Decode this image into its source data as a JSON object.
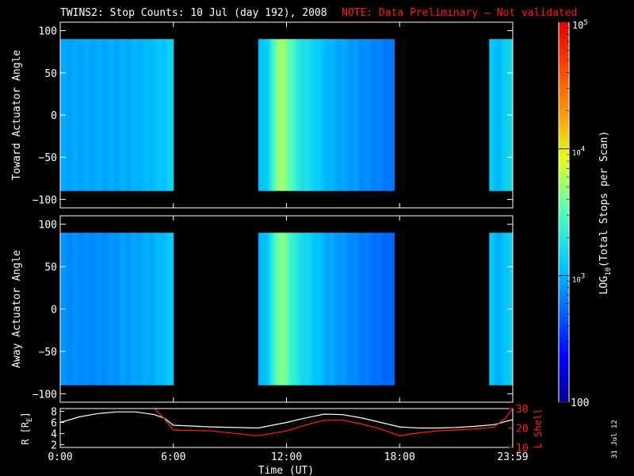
{
  "title": "TWINS2: Stop Counts: 10 Jul (day 192), 2008",
  "note": "NOTE: Data Preliminary — Not validated",
  "date_stamp": "31 Jul 12",
  "colors": {
    "background": "#000000",
    "axes": "#ffffff",
    "note": "#ff1a1a",
    "l_shell": "#ff2020",
    "r_line": "#ffffff"
  },
  "chart_data": [
    {
      "type": "heatmap",
      "name": "toward",
      "ylabel": "Toward Actuator Angle",
      "ylim": [
        -110,
        110
      ],
      "yticks": [
        -100,
        -50,
        0,
        50,
        100
      ],
      "xlim": [
        0,
        24
      ],
      "xticks": [
        0,
        6,
        12,
        18,
        24
      ],
      "data_y_range": [
        -90,
        90
      ],
      "segments": [
        {
          "start": 0.0,
          "end": 6.0,
          "values": [
            [
              0,
              2.95
            ],
            [
              1,
              2.96
            ],
            [
              2,
              2.97
            ],
            [
              3,
              2.97
            ],
            [
              4,
              3.0
            ],
            [
              5,
              3.05
            ],
            [
              5.6,
              3.1
            ],
            [
              6,
              3.15
            ]
          ]
        },
        {
          "start": 10.5,
          "end": 17.75,
          "values": [
            [
              10.5,
              3.0
            ],
            [
              11,
              3.15
            ],
            [
              11.4,
              3.5
            ],
            [
              11.6,
              3.75
            ],
            [
              11.8,
              3.7
            ],
            [
              12.2,
              3.55
            ],
            [
              12.6,
              3.3
            ],
            [
              13,
              3.25
            ],
            [
              13.5,
              3.15
            ],
            [
              14,
              3.05
            ],
            [
              15,
              2.95
            ],
            [
              16,
              2.88
            ],
            [
              17,
              2.82
            ],
            [
              17.75,
              2.78
            ]
          ]
        },
        {
          "start": 22.75,
          "end": 24.0,
          "values": [
            [
              22.75,
              3.1
            ],
            [
              23.3,
              3.05
            ],
            [
              24,
              3.25
            ]
          ]
        }
      ]
    },
    {
      "type": "heatmap",
      "name": "away",
      "ylabel": "Away Actuator Angle",
      "ylim": [
        -110,
        110
      ],
      "yticks": [
        -100,
        -50,
        0,
        50,
        100
      ],
      "xlim": [
        0,
        24
      ],
      "xticks": [
        0,
        6,
        12,
        18,
        24
      ],
      "data_y_range": [
        -90,
        90
      ],
      "segments": [
        {
          "start": 0.0,
          "end": 6.0,
          "values": [
            [
              0,
              2.88
            ],
            [
              1,
              2.86
            ],
            [
              2,
              2.86
            ],
            [
              3,
              2.9
            ],
            [
              4,
              2.95
            ],
            [
              5,
              3.0
            ],
            [
              6,
              3.1
            ]
          ]
        },
        {
          "start": 10.5,
          "end": 17.75,
          "values": [
            [
              10.5,
              2.95
            ],
            [
              11,
              3.1
            ],
            [
              11.4,
              3.45
            ],
            [
              11.7,
              3.7
            ],
            [
              12,
              3.55
            ],
            [
              12.5,
              3.3
            ],
            [
              13,
              3.2
            ],
            [
              14,
              3.0
            ],
            [
              15,
              2.9
            ],
            [
              16,
              2.82
            ],
            [
              17,
              2.75
            ],
            [
              17.75,
              2.72
            ]
          ]
        },
        {
          "start": 22.75,
          "end": 24.0,
          "values": [
            [
              22.75,
              3.1
            ],
            [
              23.3,
              3.0
            ],
            [
              24,
              3.2
            ]
          ]
        }
      ]
    },
    {
      "type": "colorbar",
      "label": "LOG10(Total Stops per Scan)",
      "scale": "log",
      "range": [
        100,
        100000
      ],
      "tick_labels": [
        "100",
        "10^3",
        "10^4",
        "10^5"
      ]
    },
    {
      "type": "line",
      "name": "orbit",
      "xlabel": "Time (UT)",
      "x_tick_labels": [
        "0:00",
        "6:00",
        "12:00",
        "18:00",
        "23:59"
      ],
      "left_axis": {
        "label": "R [RE]",
        "ylim": [
          1.5,
          8.5
        ],
        "yticks": [
          2,
          4,
          6,
          8
        ]
      },
      "right_axis": {
        "label": "L Shell",
        "ylim": [
          10,
          30
        ],
        "yticks": [
          10,
          20,
          30
        ]
      },
      "series": [
        {
          "name": "R",
          "axis": "left",
          "x": [
            0,
            1,
            2,
            3,
            4,
            5,
            5.5,
            6,
            8,
            10.5,
            12,
            13,
            14,
            15,
            16,
            17,
            18,
            19,
            20,
            21,
            22,
            23,
            24
          ],
          "y": [
            6.0,
            7.0,
            7.6,
            7.9,
            7.9,
            7.4,
            6.8,
            5.5,
            5.2,
            5.0,
            6.0,
            6.8,
            7.5,
            7.4,
            6.8,
            6.0,
            5.2,
            5.0,
            5.0,
            5.1,
            5.3,
            5.6,
            6.5
          ]
        },
        {
          "name": "L",
          "axis": "right",
          "x": [
            5.0,
            5.5,
            6.0,
            8,
            10.5,
            12,
            13,
            14,
            15,
            16,
            17,
            18,
            19,
            20,
            21,
            22,
            23,
            23.6,
            24
          ],
          "y": [
            30,
            25,
            19,
            18.5,
            16,
            18.5,
            21.5,
            24,
            24,
            22,
            19.5,
            16,
            17.5,
            18.5,
            19,
            19.5,
            20.5,
            25,
            30
          ]
        }
      ]
    }
  ]
}
